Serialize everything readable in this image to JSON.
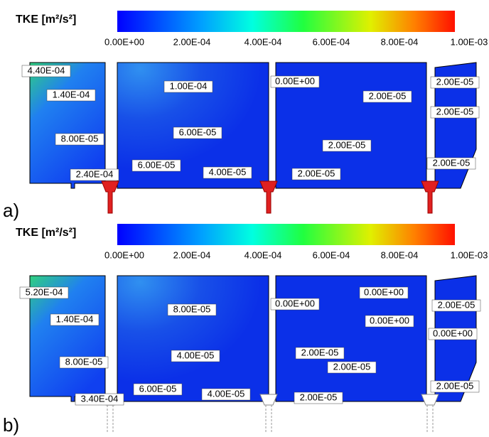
{
  "panels": [
    {
      "label": "a)",
      "colorbar": {
        "title": "TKE [m²/s²]",
        "ticks": [
          "0.00E+00",
          "2.00E-04",
          "4.00E-04",
          "6.00E-04",
          "8.00E-04",
          "1.00E-03"
        ]
      },
      "contour_labels": [
        "4.40E-04",
        "1.40E-04",
        "8.00E-05",
        "2.40E-04",
        "1.00E-04",
        "6.00E-05",
        "6.00E-05",
        "4.00E-05",
        "0.00E+00",
        "2.00E-05",
        "2.00E-05",
        "2.00E-05",
        "2.00E-05",
        "2.00E-05",
        "2.00E-05"
      ]
    },
    {
      "label": "b)",
      "colorbar": {
        "title": "TKE [m²/s²]",
        "ticks": [
          "0.00E+00",
          "2.00E-04",
          "4.00E-04",
          "6.00E-04",
          "8.00E-04",
          "1.00E-03"
        ]
      },
      "contour_labels": [
        "5.20E-04",
        "1.40E-04",
        "8.00E-05",
        "3.40E-04",
        "8.00E-05",
        "4.00E-05",
        "6.00E-05",
        "4.00E-05",
        "0.00E+00",
        "0.00E+00",
        "0.00E+00",
        "2.00E-05",
        "2.00E-05",
        "2.00E-05",
        "2.00E-05",
        "0.00E+00",
        "2.00E-05"
      ]
    }
  ]
}
